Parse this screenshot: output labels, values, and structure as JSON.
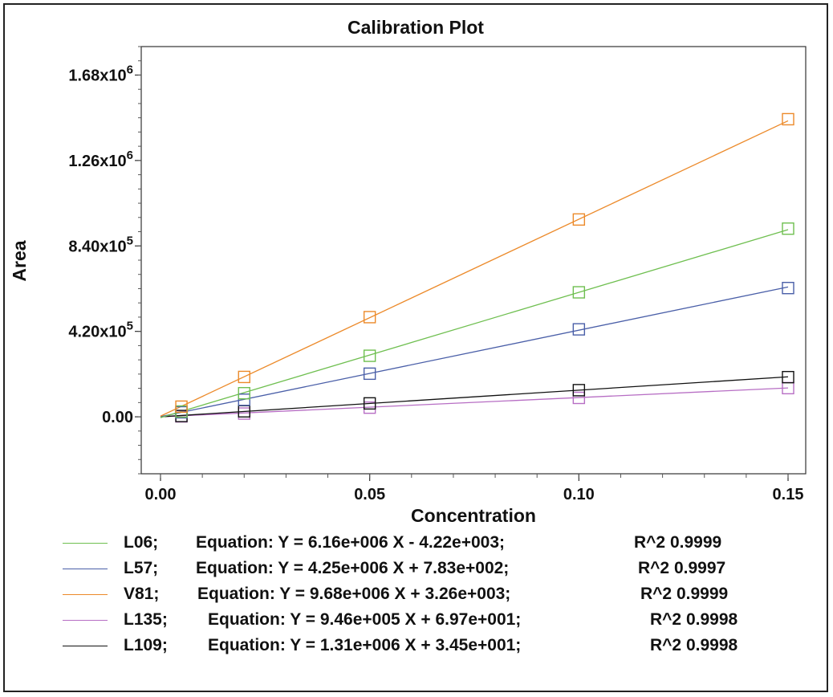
{
  "chart_data": {
    "type": "scatter",
    "title": "Calibration Plot",
    "xlabel": "Concentration",
    "ylabel": "Area",
    "xlim": [
      0.0,
      0.15
    ],
    "ylim": [
      -280000,
      1820000
    ],
    "x_ticks": [
      {
        "value": 0.0,
        "label": "0.00"
      },
      {
        "value": 0.05,
        "label": "0.05"
      },
      {
        "value": 0.1,
        "label": "0.10"
      },
      {
        "value": 0.15,
        "label": "0.15"
      }
    ],
    "y_ticks": [
      {
        "value": 0,
        "label": "0.00",
        "exp": ""
      },
      {
        "value": 420000,
        "label": "4.20x10",
        "exp": "5"
      },
      {
        "value": 840000,
        "label": "8.40x10",
        "exp": "5"
      },
      {
        "value": 1260000,
        "label": "1.26x10",
        "exp": "6"
      },
      {
        "value": 1680000,
        "label": "1.68x10",
        "exp": "6"
      }
    ],
    "grid": false,
    "legend_position": "bottom",
    "series": [
      {
        "name": "L06",
        "color": "#6fbf50",
        "slope": 6160000,
        "intercept": -4220,
        "equation": "Equation: Y = 6.16e+006 X - 4.22e+003;",
        "r2": "R^2 0.9999",
        "x": [
          0.005,
          0.02,
          0.05,
          0.1,
          0.15
        ],
        "y": [
          26000,
          116000,
          300000,
          612000,
          925000
        ]
      },
      {
        "name": "L57",
        "color": "#4a5fa8",
        "slope": 4250000,
        "intercept": 783,
        "equation": "Equation: Y = 4.25e+006 X + 7.83e+002;",
        "r2": "R^2 0.9997",
        "x": [
          0.005,
          0.02,
          0.05,
          0.1,
          0.15
        ],
        "y": [
          22000,
          84000,
          212000,
          430000,
          633000
        ]
      },
      {
        "name": "V81",
        "color": "#ec8a2a",
        "slope": 9680000,
        "intercept": 3260,
        "equation": "Equation: Y = 9.68e+006 X + 3.26e+003;",
        "r2": "R^2 0.9999",
        "x": [
          0.005,
          0.02,
          0.05,
          0.1,
          0.15
        ],
        "y": [
          50000,
          196000,
          490000,
          970000,
          1463000
        ]
      },
      {
        "name": "L135",
        "color": "#b76ec4",
        "slope": 946000,
        "intercept": 69.7,
        "equation": "Equation: Y = 9.46e+005 X + 6.97e+001;",
        "r2": "R^2 0.9998",
        "x": [
          0.005,
          0.02,
          0.05,
          0.1,
          0.15
        ],
        "y": [
          2000,
          16000,
          45000,
          93000,
          141000
        ]
      },
      {
        "name": "L109",
        "color": "#111111",
        "slope": 1310000,
        "intercept": 34.5,
        "equation": "Equation: Y = 1.31e+006 X + 3.45e+001;",
        "r2": "R^2 0.9998",
        "x": [
          0.005,
          0.02,
          0.05,
          0.1,
          0.15
        ],
        "y": [
          4000,
          27000,
          66000,
          131000,
          195000
        ]
      }
    ]
  }
}
